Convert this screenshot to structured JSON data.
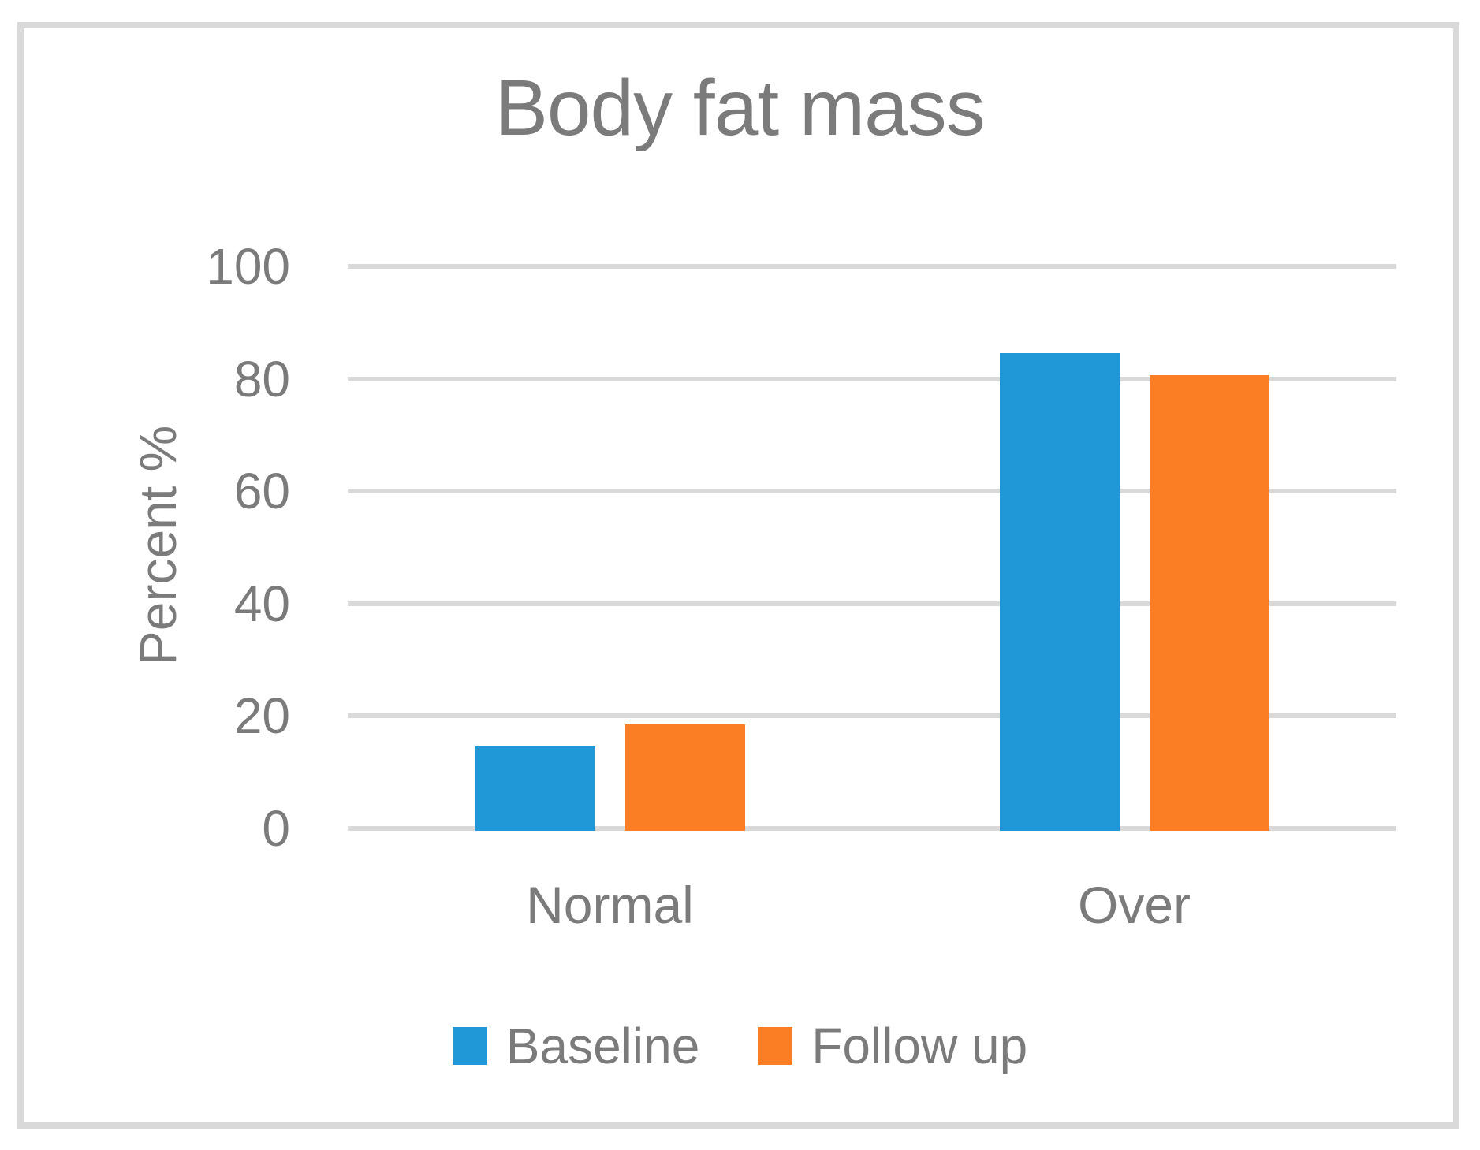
{
  "chart_data": {
    "type": "bar",
    "title": "Body fat mass",
    "ylabel": "Percent %",
    "xlabel": "",
    "categories": [
      "Normal",
      "Over"
    ],
    "series": [
      {
        "name": "Baseline",
        "color": "#2098D7",
        "values": [
          15,
          85
        ]
      },
      {
        "name": "Follow up",
        "color": "#FB7D24",
        "values": [
          19,
          81
        ]
      }
    ],
    "ylim": [
      0,
      100
    ],
    "yticks": [
      0,
      20,
      40,
      60,
      80,
      100
    ],
    "grid": true,
    "legend_position": "bottom",
    "colors": {
      "gridline": "#D9D9D9",
      "frame_border": "#D9D9D9",
      "text": "#7B7B7B",
      "background": "#FFFFFF"
    }
  }
}
